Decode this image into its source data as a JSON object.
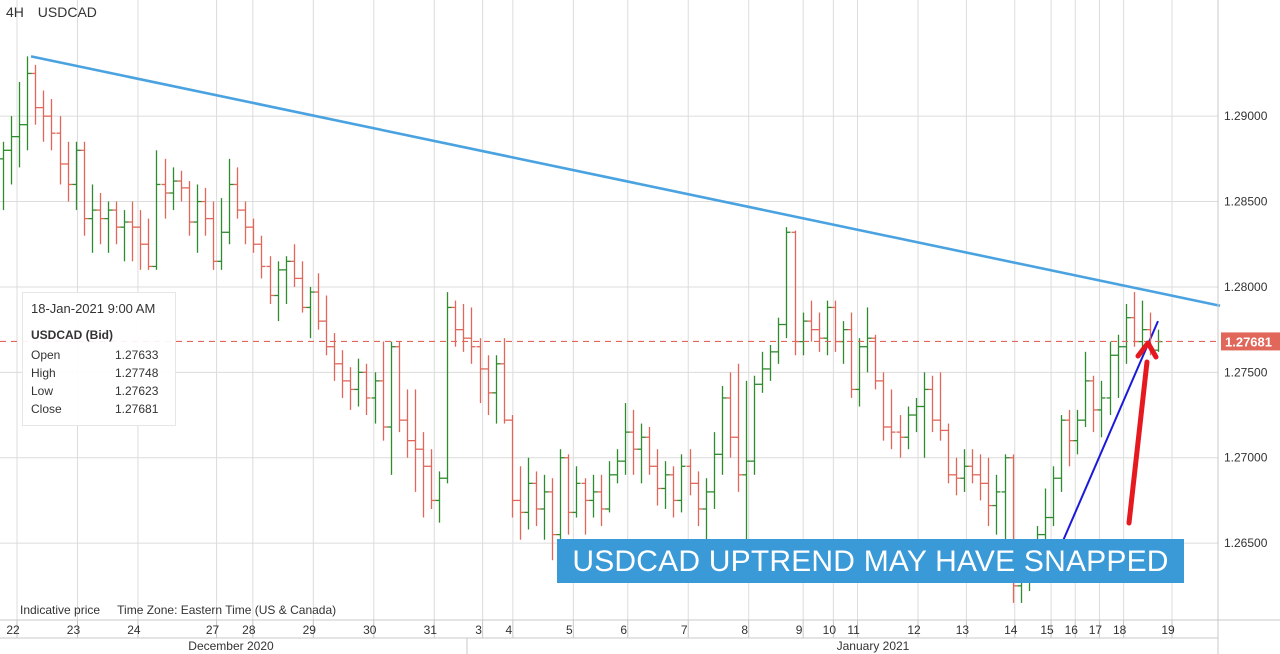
{
  "header": {
    "timeframe": "4H",
    "symbol": "USDCAD"
  },
  "info_panel": {
    "datetime": "18-Jan-2021 9:00 AM",
    "title": "USDCAD (Bid)",
    "rows": [
      {
        "label": "Open",
        "value": "1.27633"
      },
      {
        "label": "High",
        "value": "1.27748"
      },
      {
        "label": "Low",
        "value": "1.27623"
      },
      {
        "label": "Close",
        "value": "1.27681"
      }
    ]
  },
  "footer": {
    "note": "Indicative price",
    "timezone": "Time Zone: Eastern Time (US & Canada)"
  },
  "banner": {
    "text": "USDCAD UPTREND MAY HAVE SNAPPED"
  },
  "colors": {
    "up": "#2e8b2e",
    "down": "#e0675a",
    "trendline": "#4aa3e0",
    "uptrend": "#1a1adb",
    "arrow": "#e5191f",
    "price_line": "#e0675a",
    "banner_bg": "#3a9ad8",
    "grid": "#dcdcdc"
  },
  "chart_data": {
    "type": "ohlc",
    "timeframe": "4H",
    "symbol": "USDCAD",
    "y_ticks": [
      "1.26500",
      "1.27000",
      "1.27500",
      "1.28000",
      "1.28500",
      "1.29000"
    ],
    "ylim": [
      1.2605,
      1.2968
    ],
    "current_price": "1.27681",
    "x_labels": [
      "22",
      "23",
      "24",
      "27",
      "28",
      "29",
      "30",
      "31",
      "3",
      "4",
      "5",
      "6",
      "7",
      "8",
      "9",
      "10",
      "11",
      "12",
      "13",
      "14",
      "15",
      "16",
      "17",
      "18",
      "19"
    ],
    "month_labels": [
      "December 2020",
      "January 2021"
    ],
    "bars": [
      [
        1.2875,
        1.2885,
        1.2845,
        1.288
      ],
      [
        1.288,
        1.29,
        1.286,
        1.2888
      ],
      [
        1.2888,
        1.292,
        1.287,
        1.2895
      ],
      [
        1.2895,
        1.2935,
        1.288,
        1.2925
      ],
      [
        1.2925,
        1.293,
        1.2895,
        1.2905
      ],
      [
        1.2905,
        1.2915,
        1.2885,
        1.29
      ],
      [
        1.29,
        1.291,
        1.288,
        1.289
      ],
      [
        1.289,
        1.29,
        1.286,
        1.2872
      ],
      [
        1.2872,
        1.2885,
        1.285,
        1.286
      ],
      [
        1.286,
        1.2885,
        1.2845,
        1.288
      ],
      [
        1.288,
        1.2885,
        1.283,
        1.284
      ],
      [
        1.284,
        1.286,
        1.282,
        1.2845
      ],
      [
        1.2845,
        1.2855,
        1.2825,
        1.284
      ],
      [
        1.284,
        1.285,
        1.282,
        1.2845
      ],
      [
        1.2845,
        1.285,
        1.2825,
        1.2835
      ],
      [
        1.2835,
        1.2845,
        1.2815,
        1.2838
      ],
      [
        1.2838,
        1.285,
        1.2815,
        1.2835
      ],
      [
        1.2835,
        1.2845,
        1.281,
        1.2825
      ],
      [
        1.2825,
        1.284,
        1.281,
        1.2812
      ],
      [
        1.2812,
        1.288,
        1.281,
        1.286
      ],
      [
        1.286,
        1.2875,
        1.284,
        1.2855
      ],
      [
        1.2855,
        1.287,
        1.2845,
        1.2862
      ],
      [
        1.2862,
        1.2868,
        1.285,
        1.2858
      ],
      [
        1.2858,
        1.2862,
        1.283,
        1.2838
      ],
      [
        1.2838,
        1.286,
        1.282,
        1.285
      ],
      [
        1.285,
        1.2858,
        1.283,
        1.284
      ],
      [
        1.284,
        1.285,
        1.281,
        1.2815
      ],
      [
        1.2815,
        1.2852,
        1.281,
        1.2832
      ],
      [
        1.2832,
        1.2875,
        1.2825,
        1.286
      ],
      [
        1.286,
        1.287,
        1.284,
        1.2845
      ],
      [
        1.2845,
        1.285,
        1.2825,
        1.2835
      ],
      [
        1.2835,
        1.284,
        1.282,
        1.2825
      ],
      [
        1.2825,
        1.283,
        1.2805,
        1.2812
      ],
      [
        1.2812,
        1.2818,
        1.279,
        1.2795
      ],
      [
        1.2795,
        1.2815,
        1.278,
        1.281
      ],
      [
        1.281,
        1.2818,
        1.279,
        1.2815
      ],
      [
        1.2815,
        1.2825,
        1.28,
        1.2805
      ],
      [
        1.2805,
        1.2815,
        1.2785,
        1.2788
      ],
      [
        1.2788,
        1.28,
        1.277,
        1.2797
      ],
      [
        1.2797,
        1.2808,
        1.2775,
        1.278
      ],
      [
        1.278,
        1.2795,
        1.276,
        1.2765
      ],
      [
        1.2765,
        1.2773,
        1.2745,
        1.2755
      ],
      [
        1.2755,
        1.2763,
        1.2735,
        1.2745
      ],
      [
        1.2745,
        1.2753,
        1.2728,
        1.274
      ],
      [
        1.274,
        1.2758,
        1.273,
        1.275
      ],
      [
        1.275,
        1.2755,
        1.2725,
        1.2735
      ],
      [
        1.2735,
        1.275,
        1.272,
        1.2745
      ],
      [
        1.2745,
        1.2768,
        1.271,
        1.2718
      ],
      [
        1.2718,
        1.2768,
        1.269,
        1.2765
      ],
      [
        1.2765,
        1.2768,
        1.2715,
        1.2722
      ],
      [
        1.2722,
        1.274,
        1.27,
        1.271
      ],
      [
        1.271,
        1.274,
        1.268,
        1.2705
      ],
      [
        1.2705,
        1.2715,
        1.2665,
        1.2695
      ],
      [
        1.2695,
        1.2705,
        1.267,
        1.2675
      ],
      [
        1.2675,
        1.2692,
        1.2662,
        1.2688
      ],
      [
        1.2688,
        1.2797,
        1.2685,
        1.2788
      ],
      [
        1.2788,
        1.2792,
        1.2765,
        1.2775
      ],
      [
        1.2775,
        1.279,
        1.2762,
        1.277
      ],
      [
        1.277,
        1.2788,
        1.2755,
        1.2765
      ],
      [
        1.2765,
        1.277,
        1.2732,
        1.2752
      ],
      [
        1.2752,
        1.276,
        1.2725,
        1.2738
      ],
      [
        1.2738,
        1.276,
        1.272,
        1.2755
      ],
      [
        1.2755,
        1.277,
        1.272,
        1.2722
      ],
      [
        1.2722,
        1.2725,
        1.2665,
        1.2675
      ],
      [
        1.2675,
        1.2695,
        1.2652,
        1.2668
      ],
      [
        1.2668,
        1.27,
        1.2658,
        1.2685
      ],
      [
        1.2685,
        1.2692,
        1.266,
        1.267
      ],
      [
        1.267,
        1.269,
        1.2652,
        1.268
      ],
      [
        1.268,
        1.2688,
        1.264,
        1.2655
      ],
      [
        1.2655,
        1.2705,
        1.2645,
        1.27
      ],
      [
        1.27,
        1.2702,
        1.2655,
        1.2668
      ],
      [
        1.2668,
        1.2695,
        1.2665,
        1.2685
      ],
      [
        1.2685,
        1.2688,
        1.2655,
        1.2675
      ],
      [
        1.2675,
        1.269,
        1.2665,
        1.268
      ],
      [
        1.268,
        1.269,
        1.266,
        1.267
      ],
      [
        1.267,
        1.2698,
        1.2668,
        1.269
      ],
      [
        1.269,
        1.2705,
        1.2685,
        1.2698
      ],
      [
        1.2698,
        1.2732,
        1.269,
        1.2715
      ],
      [
        1.2715,
        1.2728,
        1.269,
        1.2705
      ],
      [
        1.2705,
        1.272,
        1.2685,
        1.2712
      ],
      [
        1.2712,
        1.2718,
        1.269,
        1.2695
      ],
      [
        1.2695,
        1.2705,
        1.2672,
        1.2682
      ],
      [
        1.2682,
        1.2698,
        1.267,
        1.269
      ],
      [
        1.269,
        1.2695,
        1.2665,
        1.2675
      ],
      [
        1.2675,
        1.2702,
        1.2668,
        1.2695
      ],
      [
        1.2695,
        1.2705,
        1.2678,
        1.2685
      ],
      [
        1.2685,
        1.2692,
        1.266,
        1.267
      ],
      [
        1.267,
        1.2688,
        1.265,
        1.268
      ],
      [
        1.268,
        1.2715,
        1.267,
        1.2702
      ],
      [
        1.2702,
        1.2742,
        1.269,
        1.2735
      ],
      [
        1.2735,
        1.275,
        1.27,
        1.2712
      ],
      [
        1.2712,
        1.2755,
        1.268,
        1.269
      ],
      [
        1.269,
        1.2745,
        1.263,
        1.2698
      ],
      [
        1.2698,
        1.2748,
        1.269,
        1.2743
      ],
      [
        1.2743,
        1.2762,
        1.2738,
        1.2752
      ],
      [
        1.2752,
        1.2766,
        1.2745,
        1.2762
      ],
      [
        1.2762,
        1.2782,
        1.2755,
        1.2778
      ],
      [
        1.2778,
        1.2835,
        1.277,
        1.2832
      ],
      [
        1.2832,
        1.2833,
        1.276,
        1.2768
      ],
      [
        1.2768,
        1.2785,
        1.276,
        1.278
      ],
      [
        1.278,
        1.2792,
        1.2768,
        1.2775
      ],
      [
        1.2775,
        1.2785,
        1.2762,
        1.277
      ],
      [
        1.277,
        1.2792,
        1.276,
        1.2788
      ],
      [
        1.2788,
        1.2792,
        1.2762,
        1.2768
      ],
      [
        1.2768,
        1.278,
        1.2755,
        1.2775
      ],
      [
        1.2775,
        1.2785,
        1.2735,
        1.274
      ],
      [
        1.274,
        1.277,
        1.273,
        1.2765
      ],
      [
        1.2765,
        1.2788,
        1.275,
        1.277
      ],
      [
        1.277,
        1.2772,
        1.274,
        1.2745
      ],
      [
        1.2745,
        1.275,
        1.271,
        1.2718
      ],
      [
        1.2718,
        1.274,
        1.2705,
        1.2715
      ],
      [
        1.2715,
        1.2725,
        1.27,
        1.2712
      ],
      [
        1.2712,
        1.273,
        1.2705,
        1.2725
      ],
      [
        1.2725,
        1.2735,
        1.2715,
        1.273
      ],
      [
        1.273,
        1.275,
        1.27,
        1.274
      ],
      [
        1.274,
        1.2748,
        1.2715,
        1.2722
      ],
      [
        1.2722,
        1.275,
        1.271,
        1.2716
      ],
      [
        1.2716,
        1.272,
        1.2685,
        1.269
      ],
      [
        1.269,
        1.27,
        1.2678,
        1.2688
      ],
      [
        1.2688,
        1.2705,
        1.268,
        1.2695
      ],
      [
        1.2695,
        1.2705,
        1.2685,
        1.269
      ],
      [
        1.269,
        1.2702,
        1.2675,
        1.2685
      ],
      [
        1.2685,
        1.27,
        1.266,
        1.2672
      ],
      [
        1.2672,
        1.269,
        1.2655,
        1.268
      ],
      [
        1.268,
        1.2702,
        1.2645,
        1.27
      ],
      [
        1.27,
        1.2702,
        1.2615,
        1.2625
      ],
      [
        1.2625,
        1.264,
        1.2615,
        1.2632
      ],
      [
        1.2632,
        1.265,
        1.2622,
        1.2645
      ],
      [
        1.2645,
        1.266,
        1.2635,
        1.2655
      ],
      [
        1.2655,
        1.2682,
        1.265,
        1.2665
      ],
      [
        1.2665,
        1.2695,
        1.266,
        1.2688
      ],
      [
        1.2688,
        1.2725,
        1.268,
        1.2722
      ],
      [
        1.2722,
        1.2728,
        1.2695,
        1.271
      ],
      [
        1.271,
        1.2728,
        1.2702,
        1.2722
      ],
      [
        1.2722,
        1.2762,
        1.2718,
        1.2745
      ],
      [
        1.2745,
        1.2748,
        1.2715,
        1.2728
      ],
      [
        1.2728,
        1.2745,
        1.2712,
        1.2735
      ],
      [
        1.2735,
        1.2768,
        1.2725,
        1.276
      ],
      [
        1.276,
        1.2772,
        1.2735,
        1.2765
      ],
      [
        1.2765,
        1.279,
        1.2755,
        1.2782
      ],
      [
        1.2782,
        1.2797,
        1.2765,
        1.2768
      ],
      [
        1.2768,
        1.2792,
        1.276,
        1.2775
      ],
      [
        1.2775,
        1.2785,
        1.276,
        1.2763
      ],
      [
        1.2763,
        1.2775,
        1.2762,
        1.2768
      ]
    ],
    "lines": [
      {
        "name": "",
        "from": [
          "bar0",
          1.2935
        ],
        "to": [
          "right-edge",
          1.2789
        ]
      },
      {
        "name": "",
        "from": [
          "bar119",
          1.265
        ],
        "to": [
          "bar132",
          1.278
        ]
      }
    ]
  }
}
